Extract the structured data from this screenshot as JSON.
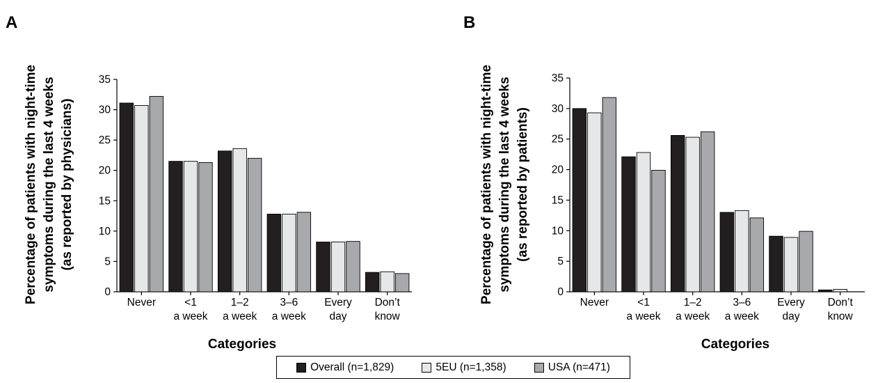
{
  "chart_data": [
    {
      "type": "bar",
      "panel_label": "A",
      "ylabel_lines": [
        "Percentage of patients with night-time",
        "symptoms during the last 4 weeks",
        "(as reported by physicians)"
      ],
      "xlabel": "Categories",
      "categories": [
        [
          "Never"
        ],
        [
          "<1",
          "a week"
        ],
        [
          "1–2",
          "a week"
        ],
        [
          "3–6",
          "a week"
        ],
        [
          "Every",
          "day"
        ],
        [
          "Don’t",
          "know"
        ]
      ],
      "ylim": [
        0,
        35
      ],
      "yticks": [
        0,
        5,
        10,
        15,
        20,
        25,
        30,
        35
      ],
      "series": [
        {
          "name": "Overall (n=1,829)",
          "values": [
            31.1,
            21.5,
            23.2,
            12.8,
            8.2,
            3.2
          ]
        },
        {
          "name": "5EU (n=1,358)",
          "values": [
            30.7,
            21.5,
            23.6,
            12.8,
            8.2,
            3.3
          ]
        },
        {
          "name": "USA (n=471)",
          "values": [
            32.2,
            21.3,
            22.0,
            13.1,
            8.3,
            3.0
          ]
        }
      ],
      "grid": false
    },
    {
      "type": "bar",
      "panel_label": "B",
      "ylabel_lines": [
        "Percentage of patients with night-time",
        "symptoms during the last 4 weeks",
        "(as reported by patients)"
      ],
      "xlabel": "Categories",
      "categories": [
        [
          "Never"
        ],
        [
          "<1",
          "a week"
        ],
        [
          "1–2",
          "a week"
        ],
        [
          "3–6",
          "a week"
        ],
        [
          "Every",
          "day"
        ],
        [
          "Don’t",
          "know"
        ]
      ],
      "ylim": [
        0,
        35
      ],
      "yticks": [
        0,
        5,
        10,
        15,
        20,
        25,
        30,
        35
      ],
      "series": [
        {
          "name": "Overall (n=1,829)",
          "values": [
            30.0,
            22.1,
            25.6,
            13.0,
            9.1,
            0.3
          ]
        },
        {
          "name": "5EU (n=1,358)",
          "values": [
            29.3,
            22.8,
            25.3,
            13.3,
            8.9,
            0.4
          ]
        },
        {
          "name": "USA (n=471)",
          "values": [
            31.8,
            19.9,
            26.2,
            12.1,
            9.9,
            0.0
          ]
        }
      ],
      "grid": false
    }
  ],
  "legend": {
    "placement": "bottom-center",
    "items": [
      {
        "label": "Overall (n=1,829)",
        "color": "#231f20"
      },
      {
        "label": "5EU (n=1,358)",
        "color": "#e6e7e8"
      },
      {
        "label": "USA (n=471)",
        "color": "#a7a9ac"
      }
    ]
  }
}
